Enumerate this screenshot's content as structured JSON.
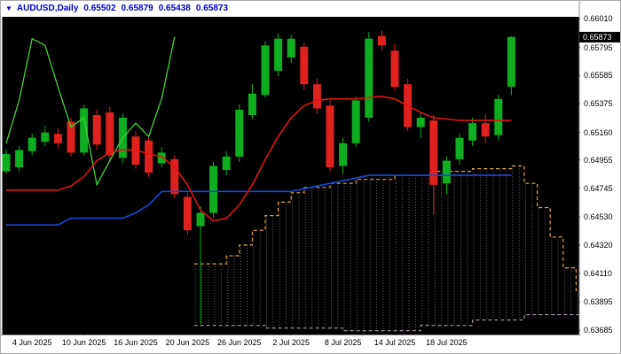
{
  "app": {
    "header": {
      "dropdown_icon": "▼",
      "symbol_period": "AUDUSD,Daily",
      "open": "0.65502",
      "high": "0.65879",
      "low": "0.65438",
      "close": "0.65873"
    }
  },
  "colors": {
    "plot_background": "#000000",
    "bull_candle": "#0fae20",
    "bear_candle": "#df221e",
    "tenkan_red_line": "#e01414",
    "kijun_blue_line": "#1747d8",
    "chikou_green_line": "#3fd435",
    "senkou_a_dashed": "#e0a050",
    "senkou_b_dashed": "#d8bfd8",
    "cloud_hatch": "#958a9e",
    "axis_separator": "#8c8c8c",
    "header_text": "#0000c8",
    "axis_text": "#000000",
    "badge_background": "#000000",
    "badge_text": "#ffffff"
  },
  "chart_data": {
    "type": "candlestick",
    "title": "AUDUSD Daily with Ichimoku overlay",
    "current_price": "0.65873",
    "y_tick_labels": [
      "0.66010",
      "0.65795",
      "0.65585",
      "0.65375",
      "0.65160",
      "0.64955",
      "0.64745",
      "0.64530",
      "0.64320",
      "0.64110",
      "0.63895",
      "0.63685"
    ],
    "x_ticks": [
      {
        "i": 2,
        "label": "4 Jun 2025"
      },
      {
        "i": 6,
        "label": "10 Jun 2025"
      },
      {
        "i": 10,
        "label": "16 Jun 2025"
      },
      {
        "i": 14,
        "label": "20 Jun 2025"
      },
      {
        "i": 18,
        "label": "26 Jun 2025"
      },
      {
        "i": 22,
        "label": "2 Jul 2025"
      },
      {
        "i": 26,
        "label": "8 Jul 2025"
      },
      {
        "i": 30,
        "label": "14 Jul 2025"
      },
      {
        "i": 34,
        "label": "18 Jul 2025"
      }
    ],
    "candles": [
      {
        "o": 0.6487,
        "h": 0.6503,
        "l": 0.6485,
        "c": 0.65
      },
      {
        "o": 0.649,
        "h": 0.6506,
        "l": 0.6487,
        "c": 0.6503
      },
      {
        "o": 0.6502,
        "h": 0.6515,
        "l": 0.6499,
        "c": 0.6512
      },
      {
        "o": 0.6509,
        "h": 0.6521,
        "l": 0.6506,
        "c": 0.6516
      },
      {
        "o": 0.6515,
        "h": 0.6519,
        "l": 0.6504,
        "c": 0.6508
      },
      {
        "o": 0.6524,
        "h": 0.6527,
        "l": 0.6498,
        "c": 0.6501
      },
      {
        "o": 0.6501,
        "h": 0.6537,
        "l": 0.6499,
        "c": 0.6534
      },
      {
        "o": 0.6529,
        "h": 0.6533,
        "l": 0.6503,
        "c": 0.6507
      },
      {
        "o": 0.6531,
        "h": 0.6535,
        "l": 0.6496,
        "c": 0.6499
      },
      {
        "o": 0.6497,
        "h": 0.653,
        "l": 0.6493,
        "c": 0.6527
      },
      {
        "o": 0.6513,
        "h": 0.6517,
        "l": 0.6489,
        "c": 0.6492
      },
      {
        "o": 0.651,
        "h": 0.6513,
        "l": 0.6483,
        "c": 0.6486
      },
      {
        "o": 0.6493,
        "h": 0.6505,
        "l": 0.649,
        "c": 0.6501
      },
      {
        "o": 0.6496,
        "h": 0.6499,
        "l": 0.6467,
        "c": 0.647
      },
      {
        "o": 0.6468,
        "h": 0.6471,
        "l": 0.644,
        "c": 0.6443
      },
      {
        "o": 0.6446,
        "h": 0.6461,
        "l": 0.6373,
        "c": 0.6456
      },
      {
        "o": 0.6456,
        "h": 0.6494,
        "l": 0.6452,
        "c": 0.6491
      },
      {
        "o": 0.6488,
        "h": 0.6502,
        "l": 0.6484,
        "c": 0.6498
      },
      {
        "o": 0.6498,
        "h": 0.6537,
        "l": 0.6494,
        "c": 0.6533
      },
      {
        "o": 0.6529,
        "h": 0.6552,
        "l": 0.6526,
        "c": 0.6545
      },
      {
        "o": 0.6544,
        "h": 0.6584,
        "l": 0.6542,
        "c": 0.6581
      },
      {
        "o": 0.6562,
        "h": 0.659,
        "l": 0.6558,
        "c": 0.6586
      },
      {
        "o": 0.6572,
        "h": 0.6589,
        "l": 0.6568,
        "c": 0.6586
      },
      {
        "o": 0.658,
        "h": 0.6583,
        "l": 0.6548,
        "c": 0.6552
      },
      {
        "o": 0.6552,
        "h": 0.6556,
        "l": 0.653,
        "c": 0.6534
      },
      {
        "o": 0.6536,
        "h": 0.654,
        "l": 0.6487,
        "c": 0.649
      },
      {
        "o": 0.6491,
        "h": 0.6512,
        "l": 0.6485,
        "c": 0.6508
      },
      {
        "o": 0.6508,
        "h": 0.6543,
        "l": 0.6505,
        "c": 0.654
      },
      {
        "o": 0.6527,
        "h": 0.6591,
        "l": 0.6524,
        "c": 0.6586
      },
      {
        "o": 0.6588,
        "h": 0.6592,
        "l": 0.6577,
        "c": 0.6581
      },
      {
        "o": 0.6577,
        "h": 0.6582,
        "l": 0.6547,
        "c": 0.655
      },
      {
        "o": 0.6552,
        "h": 0.6556,
        "l": 0.6517,
        "c": 0.652
      },
      {
        "o": 0.652,
        "h": 0.6531,
        "l": 0.6512,
        "c": 0.6527
      },
      {
        "o": 0.6525,
        "h": 0.6529,
        "l": 0.6455,
        "c": 0.6477
      },
      {
        "o": 0.6478,
        "h": 0.6498,
        "l": 0.647,
        "c": 0.6495
      },
      {
        "o": 0.6496,
        "h": 0.6515,
        "l": 0.6492,
        "c": 0.6512
      },
      {
        "o": 0.651,
        "h": 0.6527,
        "l": 0.6506,
        "c": 0.6523
      },
      {
        "o": 0.6523,
        "h": 0.653,
        "l": 0.6508,
        "c": 0.6513
      },
      {
        "o": 0.6514,
        "h": 0.6544,
        "l": 0.651,
        "c": 0.6541
      },
      {
        "o": 0.65502,
        "h": 0.65879,
        "l": 0.65438,
        "c": 0.65873
      }
    ],
    "overlays": {
      "tenkan_sen_red": [
        0.6473,
        0.6473,
        0.6473,
        0.6473,
        0.6473,
        0.6476,
        0.6483,
        0.6495,
        0.6501,
        0.6503,
        0.6503,
        0.65,
        0.6498,
        0.649,
        0.6477,
        0.6458,
        0.645,
        0.6452,
        0.6462,
        0.6477,
        0.6496,
        0.6513,
        0.6527,
        0.6536,
        0.654,
        0.6541,
        0.6541,
        0.6541,
        0.6542,
        0.6543,
        0.6541,
        0.6536,
        0.6531,
        0.6527,
        0.6526,
        0.6525,
        0.6525,
        0.6525,
        0.6525,
        0.6525
      ],
      "kijun_sen_blue": [
        0.6447,
        0.6447,
        0.6447,
        0.6447,
        0.6447,
        0.6452,
        0.6452,
        0.6452,
        0.6452,
        0.6452,
        0.6456,
        0.6462,
        0.6472,
        0.6472,
        0.6472,
        0.6472,
        0.6472,
        0.6472,
        0.6472,
        0.6472,
        0.6472,
        0.6472,
        0.6472,
        0.6474,
        0.6476,
        0.6478,
        0.648,
        0.6482,
        0.6484,
        0.6484,
        0.6484,
        0.6484,
        0.6484,
        0.6484,
        0.6484,
        0.6484,
        0.6484,
        0.6484,
        0.6484,
        0.6484
      ],
      "chikou_span_green": {
        "start_index": 0,
        "values": [
          0.6508,
          0.654,
          0.6586,
          0.6581,
          0.655,
          0.652,
          0.6527,
          0.6477,
          0.6495,
          0.6512,
          0.6523,
          0.6513,
          0.6541,
          0.65873
        ]
      },
      "senkou_span_a": [
        [
          14.5,
          0.6418
        ],
        [
          17,
          0.6418
        ],
        [
          17,
          0.6424
        ],
        [
          18,
          0.6424
        ],
        [
          18,
          0.6432
        ],
        [
          19,
          0.6432
        ],
        [
          19,
          0.6443
        ],
        [
          20,
          0.6443
        ],
        [
          20,
          0.6454
        ],
        [
          21,
          0.6454
        ],
        [
          21,
          0.6464
        ],
        [
          22,
          0.6464
        ],
        [
          22,
          0.6471
        ],
        [
          23,
          0.6471
        ],
        [
          23,
          0.6475
        ],
        [
          25,
          0.6475
        ],
        [
          25,
          0.6478
        ],
        [
          27,
          0.6478
        ],
        [
          27,
          0.6481
        ],
        [
          30,
          0.6481
        ],
        [
          30,
          0.6484
        ],
        [
          33,
          0.6484
        ],
        [
          33,
          0.6487
        ],
        [
          36,
          0.6487
        ],
        [
          36,
          0.6489
        ],
        [
          39,
          0.6489
        ],
        [
          39,
          0.6491
        ],
        [
          40,
          0.6491
        ],
        [
          40,
          0.6478
        ],
        [
          41,
          0.6478
        ],
        [
          41,
          0.646
        ],
        [
          42,
          0.646
        ],
        [
          42,
          0.6438
        ],
        [
          43,
          0.6438
        ],
        [
          43,
          0.6415
        ],
        [
          44,
          0.6415
        ],
        [
          44,
          0.6398
        ],
        [
          44.3,
          0.6398
        ]
      ],
      "senkou_span_b": [
        [
          14.5,
          0.6372
        ],
        [
          20,
          0.6372
        ],
        [
          20,
          0.637
        ],
        [
          26,
          0.637
        ],
        [
          26,
          0.6368
        ],
        [
          32,
          0.6368
        ],
        [
          32,
          0.6372
        ],
        [
          36,
          0.6372
        ],
        [
          36,
          0.6376
        ],
        [
          40,
          0.6376
        ],
        [
          40,
          0.638
        ],
        [
          44.3,
          0.638
        ]
      ]
    }
  }
}
